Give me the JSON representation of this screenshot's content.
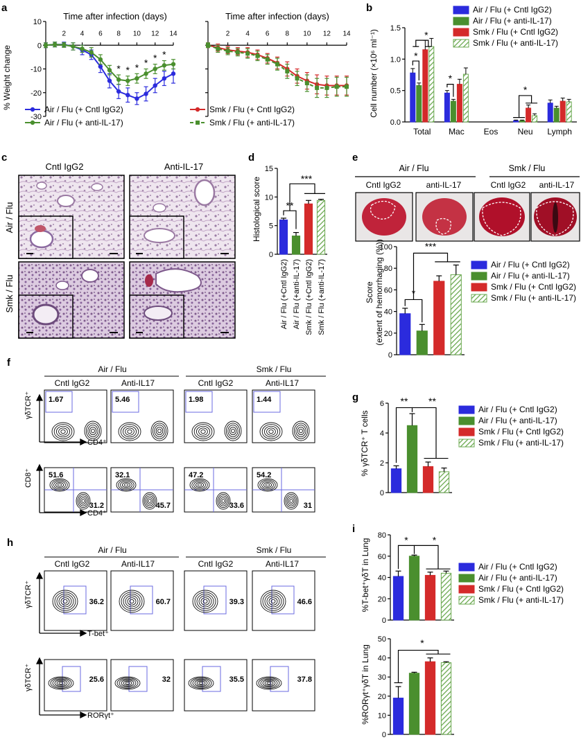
{
  "colors": {
    "air_cntl": "#2b2bdd",
    "air_anti": "#4a8f2e",
    "smk_cntl": "#d42a2a",
    "smk_anti_stripe": "#6aa84f",
    "flow_gate": "#6a6ae0",
    "tissue_pink": "#c9a9c9",
    "lung_red": "#b0102a"
  },
  "panel_letters": [
    "a",
    "b",
    "c",
    "d",
    "e",
    "f",
    "g",
    "h",
    "i"
  ],
  "legend4": [
    "Air / Flu (+ Cntl IgG2)",
    "Air / Flu (+ anti-IL-17)",
    "Smk / Flu (+ Cntl IgG2)",
    "Smk / Flu (+ anti-IL-17)"
  ],
  "panel_a": {
    "title": "Time after infection (days)",
    "ylabel": "% Weight change",
    "left_legend": [
      "Air / Flu (+ Cntl IgG2)",
      "Air / Flu (+ anti-IL-17)"
    ],
    "right_legend": [
      "Smk / Flu (+ Cntl IgG2)",
      "Smk / Flu (+ anti-IL-17)"
    ],
    "sig_marks": [
      "*",
      "*",
      "*",
      "*",
      "*",
      "*"
    ]
  },
  "panel_b": {
    "ylabel": "Cell number (×10⁶ ml⁻¹)",
    "sig_marks": [
      "*",
      "*",
      "*",
      "*"
    ]
  },
  "panel_c": {
    "col_headers": [
      "Cntl IgG2",
      "Anti-IL-17"
    ],
    "row_headers": [
      "Air / Flu",
      "Smk / Flu"
    ]
  },
  "panel_d": {
    "ylabel": "Histological score",
    "sig_marks": [
      "**",
      "***"
    ]
  },
  "panel_e": {
    "group_headers": [
      "Air / Flu",
      "Smk / Flu"
    ],
    "sub_headers": [
      "Cntl IgG2",
      "anti-IL-17",
      "Cntl IgG2",
      "anti-IL-17"
    ],
    "ylabel": "Score (extent of hemorrhaging (%))",
    "ylabel_line1": "Score",
    "ylabel_line2": "(extent of hemorrhaging (%))",
    "sig_marks": [
      "*",
      "***"
    ]
  },
  "panel_f": {
    "group_headers": [
      "Air / Flu",
      "Smk / Flu"
    ],
    "sub_headers": [
      "Cntl IgG2",
      "Anti-IL17",
      "Cntl IgG2",
      "Anti-IL17"
    ],
    "row1_y": "γδTCR⁺",
    "row1_x": "CD4⁺",
    "row1_values": [
      "1.67",
      "5.46",
      "1.98",
      "1.44"
    ],
    "row2_y": "CD8⁺",
    "row2_x": "CD4⁺",
    "row2_tl": [
      "51.6",
      "32.1",
      "47.2",
      "54.2"
    ],
    "row2_br": [
      "31.2",
      "45.7",
      "33.6",
      "31"
    ]
  },
  "panel_g": {
    "ylabel": "% γδTCR⁺ T cells",
    "sig_marks": [
      "**",
      "**"
    ]
  },
  "panel_h": {
    "group_headers": [
      "Air / Flu",
      "Smk / Flu"
    ],
    "sub_headers": [
      "Cntl IgG2",
      "Anti-IL17",
      "Cntl IgG2",
      "Anti-IL17"
    ],
    "row1_y": "γδTCR⁺",
    "row1_x": "T-bet⁺",
    "row1_values": [
      "36.2",
      "60.7",
      "39.3",
      "46.6"
    ],
    "row2_y": "γδTCR⁺",
    "row2_x": "RORγt⁺",
    "row2_values": [
      "25.6",
      "32",
      "35.5",
      "37.8"
    ]
  },
  "panel_i": {
    "top_ylabel": "%T-bet⁺γδT in Lung",
    "bottom_ylabel": "%RORγt⁺γδT in Lung",
    "top_sig": [
      "*",
      "*"
    ],
    "bottom_sig": [
      "*"
    ]
  },
  "chart_data": [
    {
      "id": "a-left",
      "type": "line",
      "x": [
        0,
        1,
        2,
        3,
        4,
        5,
        6,
        7,
        8,
        9,
        10,
        11,
        12,
        13,
        14
      ],
      "xticks": [
        2,
        4,
        6,
        8,
        10,
        12,
        14
      ],
      "ylim": [
        -30,
        10
      ],
      "yticks": [
        10,
        0,
        -10,
        -20,
        -30
      ],
      "series": [
        {
          "name": "Air / Flu (+ Cntl IgG2)",
          "color": "#2b2bdd",
          "marker": "circle",
          "dash": false,
          "values": [
            0,
            0.3,
            0.3,
            -0.5,
            -2,
            -4,
            -9,
            -15,
            -19.5,
            -21,
            -22.5,
            -20.5,
            -17,
            -14,
            -12
          ],
          "err": [
            1,
            1,
            1,
            1.5,
            2,
            2,
            2.5,
            3,
            3,
            3,
            2.5,
            3,
            3,
            3,
            4
          ]
        },
        {
          "name": "Air / Flu (+ anti-IL-17)",
          "color": "#4a8f2e",
          "marker": "circle",
          "dash": false,
          "values": [
            0,
            0.3,
            0.1,
            -0.5,
            -1.5,
            -3,
            -6,
            -10.5,
            -14.5,
            -15,
            -14,
            -12,
            -10,
            -8.5,
            -8
          ],
          "err": [
            1,
            1,
            1,
            1.5,
            1.5,
            2,
            2,
            2,
            2,
            2,
            2,
            2,
            2,
            2,
            2
          ]
        }
      ],
      "sig_days": [
        8,
        9,
        10,
        11,
        12,
        13
      ]
    },
    {
      "id": "a-right",
      "type": "line",
      "x": [
        0,
        1,
        2,
        3,
        4,
        5,
        6,
        7,
        8,
        9,
        10,
        11,
        12,
        13,
        14
      ],
      "xticks": [
        2,
        4,
        6,
        8,
        10,
        12,
        14
      ],
      "ylim": [
        -30,
        10
      ],
      "series": [
        {
          "name": "Smk / Flu (+ Cntl IgG2)",
          "color": "#d42a2a",
          "marker": "circle",
          "dash": false,
          "values": [
            0,
            -1,
            -2,
            -2.5,
            -3,
            -4,
            -5.5,
            -7.5,
            -10,
            -13,
            -15,
            -16.5,
            -17,
            -17,
            -17
          ],
          "err": [
            1,
            1.5,
            1.5,
            1.5,
            2,
            2,
            2,
            2.5,
            3,
            3,
            3.5,
            4,
            4,
            4,
            4
          ]
        },
        {
          "name": "Smk / Flu (+ anti-IL-17)",
          "color": "#4a8f2e",
          "marker": "square",
          "dash": true,
          "values": [
            0,
            -1.5,
            -2.5,
            -3,
            -3.5,
            -4.5,
            -6,
            -8,
            -11,
            -14,
            -16,
            -18,
            -18,
            -17.5,
            -17.5
          ],
          "err": [
            1,
            1.5,
            1.5,
            1.5,
            2,
            2,
            2,
            2.5,
            3,
            3,
            3.5,
            4,
            4,
            4,
            4
          ]
        }
      ]
    },
    {
      "id": "b",
      "type": "bar",
      "categories": [
        "Total",
        "Mac",
        "Eos",
        "Neu",
        "Lymph"
      ],
      "ylim": [
        0,
        1.5
      ],
      "yticks": [
        0,
        0.5,
        1.0,
        1.5
      ],
      "series": [
        {
          "name": "Air / Flu (+ Cntl IgG2)",
          "values": [
            0.78,
            0.46,
            0,
            0.02,
            0.3
          ],
          "err": [
            0.07,
            0.04,
            0,
            0.01,
            0.05
          ]
        },
        {
          "name": "Air / Flu (+ anti-IL-17)",
          "values": [
            0.58,
            0.33,
            0,
            0.02,
            0.22
          ],
          "err": [
            0.04,
            0.03,
            0,
            0.01,
            0.03
          ]
        },
        {
          "name": "Smk / Flu (+ Cntl IgG2)",
          "values": [
            1.15,
            0.6,
            0,
            0.22,
            0.33
          ],
          "err": [
            0.15,
            0.08,
            0,
            0.05,
            0.05
          ]
        },
        {
          "name": "Smk / Flu (+ anti-IL-17)",
          "values": [
            1.2,
            0.76,
            0,
            0.1,
            0.32
          ],
          "err": [
            0.13,
            0.1,
            0,
            0.03,
            0.04
          ]
        }
      ]
    },
    {
      "id": "d",
      "type": "bar",
      "categories": [
        "Air / Flu (+Cntl IgG2)",
        "Air / Flu (+anti-IL-17)",
        "Smk / Flu (+Cntl IgG2)",
        "Smk / Flu (+anti-IL-17)"
      ],
      "ylim": [
        0,
        15
      ],
      "yticks": [
        0,
        5,
        10,
        15
      ],
      "values": [
        6,
        3.2,
        8.8,
        9.4
      ],
      "err": [
        0.3,
        0.6,
        0.6,
        0.2
      ]
    },
    {
      "id": "e",
      "type": "bar",
      "categories": [
        "Air / Flu (+ Cntl IgG2)",
        "Air / Flu (+ anti-IL-17)",
        "Smk / Flu (+ Cntl IgG2)",
        "Smk / Flu (+ anti-IL-17)"
      ],
      "ylim": [
        0,
        100
      ],
      "yticks": [
        0,
        20,
        40,
        60,
        80,
        100
      ],
      "values": [
        38,
        22,
        68,
        74
      ],
      "err": [
        5,
        6,
        5,
        9
      ]
    },
    {
      "id": "g",
      "type": "bar",
      "categories": [
        "Air / Flu (+ Cntl IgG2)",
        "Air / Flu (+ anti-IL-17)",
        "Smk / Flu (+ Cntl IgG2)",
        "Smk / Flu (+ anti-IL-17)"
      ],
      "ylim": [
        0,
        6
      ],
      "yticks": [
        0,
        2,
        4,
        6
      ],
      "values": [
        1.6,
        4.5,
        1.75,
        1.4
      ],
      "err": [
        0.2,
        0.8,
        0.3,
        0.25
      ]
    },
    {
      "id": "i-top",
      "type": "bar",
      "categories": [
        "Air / Flu (+ Cntl IgG2)",
        "Air / Flu (+ anti-IL-17)",
        "Smk / Flu (+ Cntl IgG2)",
        "Smk / Flu (+ anti-IL-17)"
      ],
      "ylim": [
        0,
        80
      ],
      "yticks": [
        0,
        20,
        40,
        60,
        80
      ],
      "values": [
        41,
        60,
        42,
        44
      ],
      "err": [
        5,
        1,
        3,
        2
      ]
    },
    {
      "id": "i-bottom",
      "type": "bar",
      "categories": [
        "Air / Flu (+ Cntl IgG2)",
        "Air / Flu (+ anti-IL-17)",
        "Smk / Flu (+ Cntl IgG2)",
        "Smk / Flu (+ anti-IL-17)"
      ],
      "ylim": [
        0,
        50
      ],
      "yticks": [
        0,
        10,
        20,
        30,
        40,
        50
      ],
      "values": [
        19,
        32,
        38,
        37.5
      ],
      "err": [
        6,
        0.5,
        2,
        0.5
      ]
    }
  ]
}
